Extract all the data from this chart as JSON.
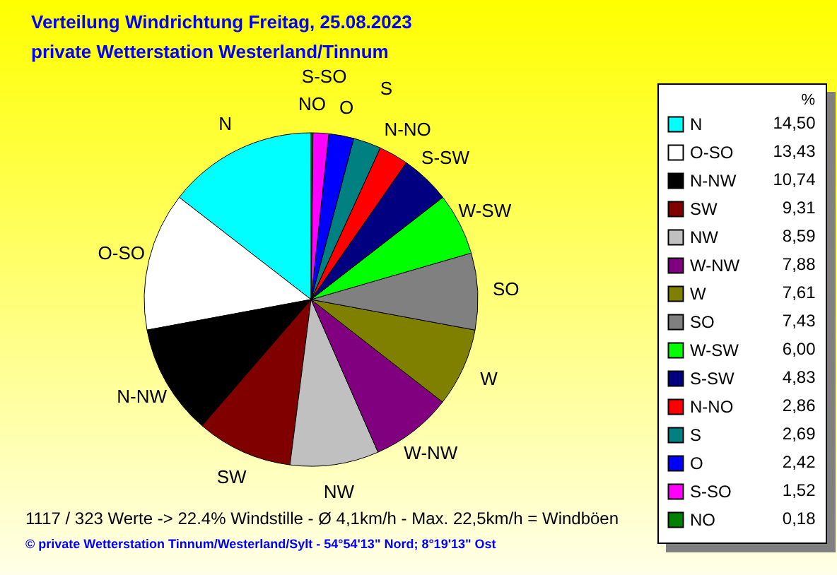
{
  "chart_data": {
    "type": "pie",
    "title": "Verteilung Windrichtung   Freitag, 25.08.2023",
    "subtitle": "private Wetterstation Westerland/Tinnum",
    "legend_title": "%",
    "legend": "right",
    "categories": [
      "N",
      "O-SO",
      "N-NW",
      "SW",
      "NW",
      "W-NW",
      "W",
      "SO",
      "W-SW",
      "S-SW",
      "N-NO",
      "S",
      "O",
      "S-SO",
      "NO"
    ],
    "values": [
      14.5,
      13.43,
      10.74,
      9.31,
      8.59,
      7.88,
      7.61,
      7.43,
      6.0,
      4.83,
      2.86,
      2.69,
      2.42,
      1.52,
      0.18
    ],
    "value_labels": [
      "14,50",
      "13,43",
      "10,74",
      "9,31",
      "8,59",
      "7,88",
      "7,61",
      "7,43",
      "6,00",
      "4,83",
      "2,86",
      "2,69",
      "2,42",
      "1,52",
      "0,18"
    ],
    "colors": [
      "#00ffff",
      "#ffffff",
      "#000000",
      "#800000",
      "#c0c0c0",
      "#800080",
      "#808000",
      "#808080",
      "#00ff00",
      "#000080",
      "#ff0000",
      "#008080",
      "#0000ff",
      "#ff00ff",
      "#008000"
    ],
    "annotations": [
      "1117 / 323 Werte  -> 22.4% Windstille   -   Ø 4,1km/h  -  Max. 22,5km/h = Windböen",
      "© private Wetterstation Tinnum/Westerland/Sylt  -  54°54'13\" Nord; 8°19'13\" Ost"
    ]
  }
}
